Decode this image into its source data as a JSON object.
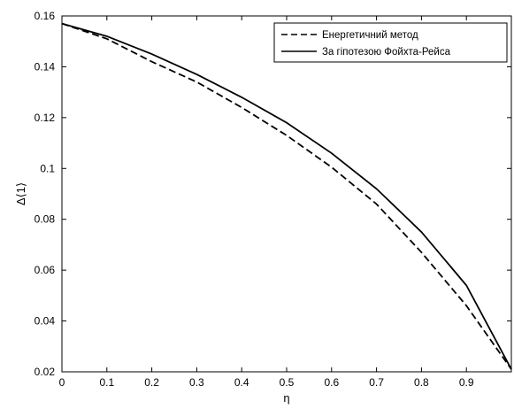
{
  "chart_data": {
    "type": "line",
    "xlabel": "η",
    "ylabel": "Δ⟨1⟩",
    "xlim": [
      0,
      1
    ],
    "ylim": [
      0.02,
      0.16
    ],
    "xticks": [
      "0",
      "0.1",
      "0.2",
      "0.3",
      "0.4",
      "0.5",
      "0.6",
      "0.7",
      "0.8",
      "0.9"
    ],
    "yticks": [
      "0.02",
      "0.04",
      "0.06",
      "0.08",
      "0.1",
      "0.12",
      "0.14",
      "0.16"
    ],
    "grid": false,
    "legend_position": "top-right",
    "series": [
      {
        "name": "Енергетичний метод",
        "style": "dashed",
        "color": "#000000",
        "x": [
          0,
          0.1,
          0.2,
          0.3,
          0.4,
          0.5,
          0.6,
          0.7,
          0.8,
          0.9,
          1.0
        ],
        "y": [
          0.157,
          0.151,
          0.142,
          0.134,
          0.124,
          0.113,
          0.1005,
          0.086,
          0.067,
          0.046,
          0.021
        ]
      },
      {
        "name": "За гіпотезою Фойхта-Рейса",
        "style": "solid",
        "color": "#000000",
        "x": [
          0,
          0.1,
          0.2,
          0.3,
          0.4,
          0.5,
          0.6,
          0.7,
          0.8,
          0.9,
          1.0
        ],
        "y": [
          0.157,
          0.152,
          0.145,
          0.137,
          0.128,
          0.118,
          0.106,
          0.092,
          0.075,
          0.054,
          0.021
        ]
      }
    ]
  }
}
